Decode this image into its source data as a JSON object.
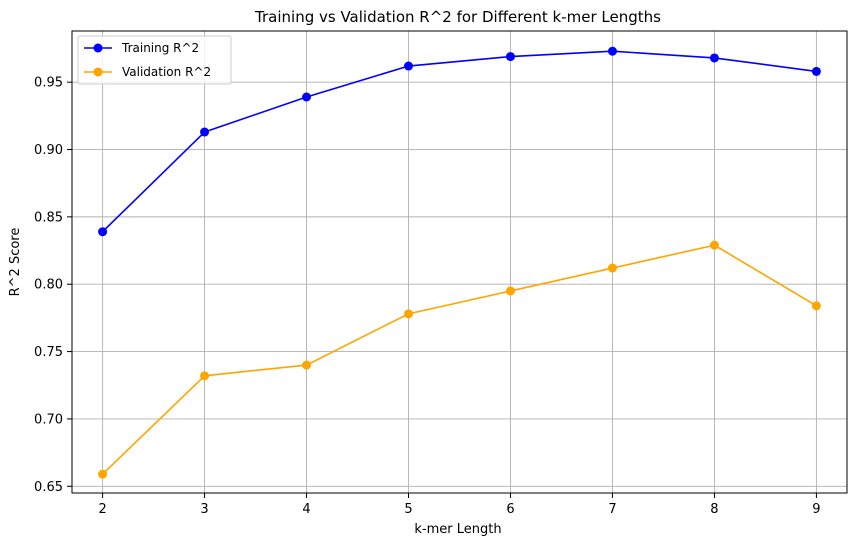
{
  "chart_data": {
    "type": "line",
    "title": "Training vs Validation R^2 for Different k-mer Lengths",
    "xlabel": "k-mer Length",
    "ylabel": "R^2 Score",
    "x": [
      2,
      3,
      4,
      5,
      6,
      7,
      8,
      9
    ],
    "xlim": [
      1.7,
      9.3
    ],
    "ylim": [
      0.645,
      0.988
    ],
    "xticks": [
      2,
      3,
      4,
      5,
      6,
      7,
      8,
      9
    ],
    "yticks": [
      0.65,
      0.7,
      0.75,
      0.8,
      0.85,
      0.9,
      0.95
    ],
    "ytick_labels": [
      "0.65",
      "0.70",
      "0.75",
      "0.80",
      "0.85",
      "0.90",
      "0.95"
    ],
    "grid": true,
    "legend_position": "upper-left",
    "series": [
      {
        "name": "Training R^2",
        "color": "#0000ff",
        "values": [
          0.839,
          0.913,
          0.939,
          0.962,
          0.969,
          0.973,
          0.968,
          0.958
        ]
      },
      {
        "name": "Validation R^2",
        "color": "#ffa500",
        "values": [
          0.659,
          0.732,
          0.74,
          0.778,
          0.795,
          0.812,
          0.829,
          0.784
        ]
      }
    ]
  }
}
